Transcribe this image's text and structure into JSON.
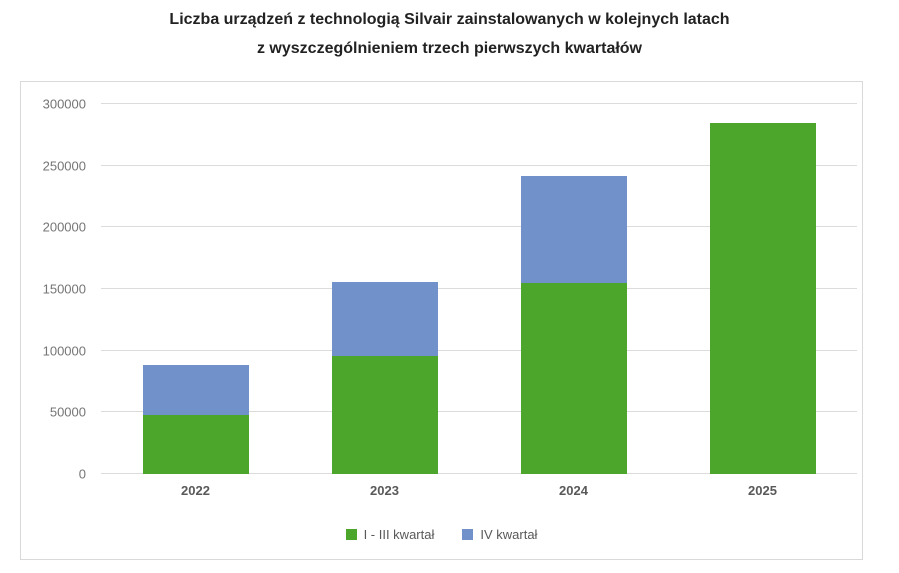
{
  "title": {
    "line1": "Liczba urządzeń z technologią Silvair zainstalowanych w kolejnych latach",
    "line2": "z wyszczególnieniem trzech pierwszych kwartałów"
  },
  "chart_data": {
    "type": "bar",
    "stacked": true,
    "title": "Liczba urządzeń z technologią Silvair zainstalowanych w kolejnych latach z wyszczególnieniem trzech pierwszych kwartałów",
    "categories": [
      "2022",
      "2023",
      "2024",
      "2025"
    ],
    "series": [
      {
        "name": "I - III kwartał",
        "color": "#4CA62C",
        "values": [
          48000,
          96000,
          155000,
          284500
        ]
      },
      {
        "name": "IV kwartał",
        "color": "#7191CB",
        "values": [
          40500,
          60000,
          86500,
          0
        ]
      }
    ],
    "xlabel": "",
    "ylabel": "",
    "ylim": [
      0,
      300000
    ],
    "ytick_step": 50000,
    "ytick_labels": [
      "0",
      "50000",
      "100000",
      "150000",
      "200000",
      "250000",
      "300000"
    ],
    "grid": true,
    "gridline_color": "#dcdcdc",
    "legend_position": "bottom"
  },
  "colors": {
    "title_text": "#222222",
    "axis_text": "#757575",
    "category_text": "#595959",
    "frame_border": "#d9d9d9",
    "background": "#ffffff"
  }
}
